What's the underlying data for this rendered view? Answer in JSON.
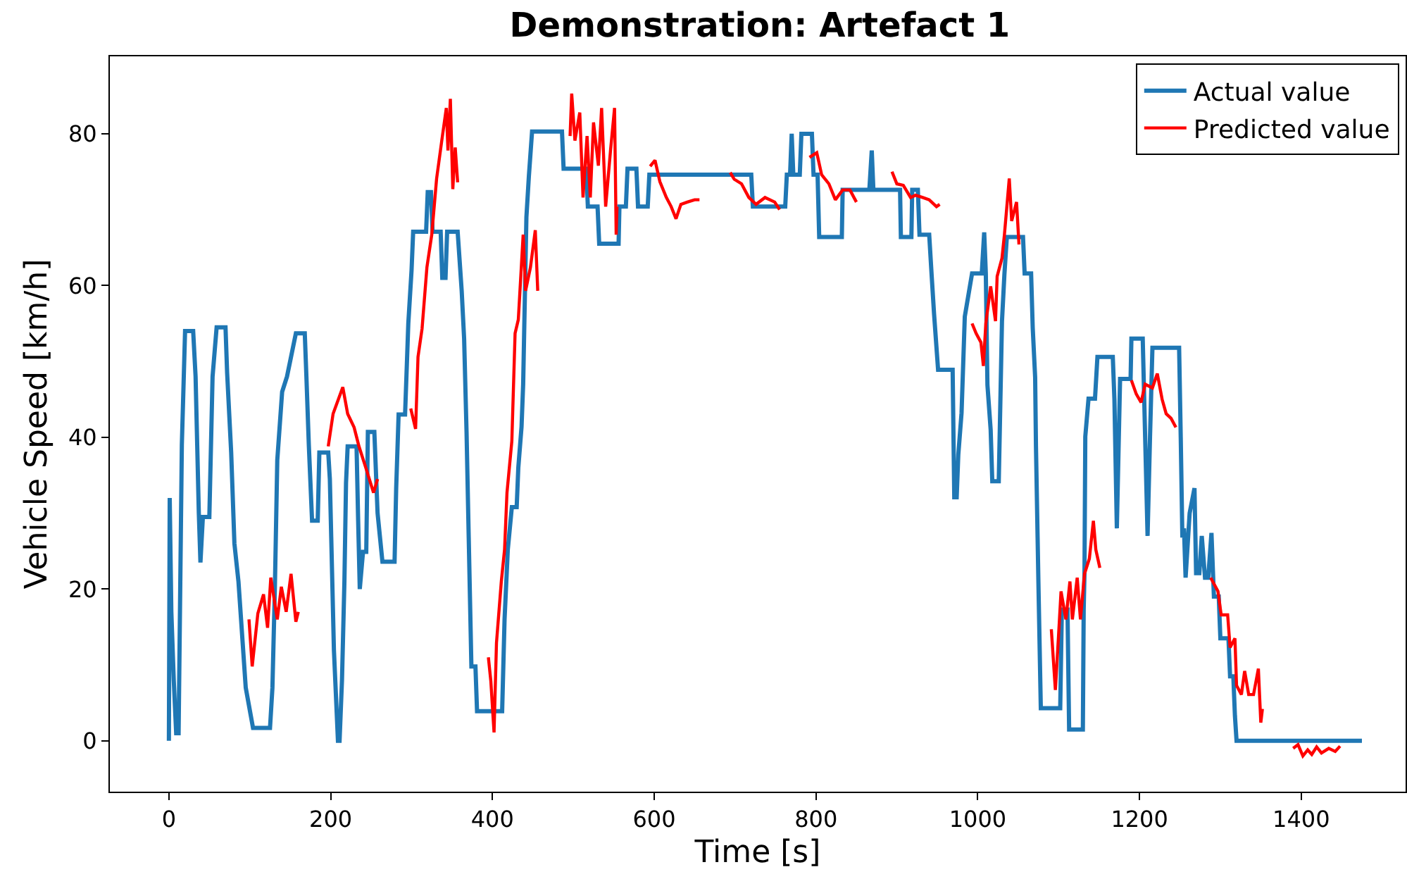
{
  "chart_data": {
    "type": "line",
    "title": "Demonstration: Artefact 1",
    "xlabel": "Time [s]",
    "ylabel": "Vehicle Speed [km/h]",
    "xlim": [
      -73,
      1529
    ],
    "ylim": [
      -6.7,
      90.2
    ],
    "xticks": [
      0,
      200,
      400,
      600,
      800,
      1000,
      1200,
      1400
    ],
    "yticks": [
      0,
      20,
      40,
      60,
      80
    ],
    "grid": false,
    "legend": "top right",
    "line_style": "solid",
    "marker": "none",
    "series": [
      {
        "name": "Actual value",
        "color": "#1f77b4",
        "x": [
          0,
          1,
          3,
          6,
          9,
          12,
          14,
          16,
          20,
          30,
          33,
          37,
          39,
          42,
          50,
          54,
          59,
          70,
          72,
          77,
          81,
          86,
          95,
          104,
          125,
          128,
          131,
          134,
          140,
          146,
          157,
          168,
          170,
          173,
          177,
          184,
          186,
          197,
          199,
          204,
          209,
          211,
          214,
          217,
          219,
          221,
          232,
          234,
          236,
          240,
          244,
          246,
          254,
          258,
          264,
          279,
          281,
          284,
          292,
          296,
          300,
          302,
          318,
          320,
          324,
          326,
          336,
          338,
          342,
          344,
          357,
          362,
          365,
          368,
          371,
          374,
          379,
          381,
          412,
          415,
          419,
          424,
          430,
          432,
          436,
          438,
          442,
          445,
          449,
          486,
          488,
          516,
          518,
          530,
          532,
          556,
          557,
          565,
          567,
          578,
          580,
          592,
          594,
          720,
          722,
          762,
          764,
          768,
          770,
          772,
          780,
          782,
          795,
          797,
          802,
          804,
          832,
          833,
          866,
          869,
          871,
          904,
          905,
          918,
          919,
          926,
          928,
          940,
          943,
          946,
          951,
          969,
          971,
          974,
          976,
          980,
          984,
          993,
          1005,
          1008,
          1010,
          1012,
          1016,
          1018,
          1026,
          1030,
          1033,
          1036,
          1056,
          1058,
          1066,
          1068,
          1071,
          1072,
          1075,
          1078,
          1102,
          1104,
          1111,
          1113,
          1130,
          1131,
          1132,
          1133,
          1137,
          1145,
          1148,
          1167,
          1169,
          1172,
          1176,
          1189,
          1190,
          1204,
          1207,
          1210,
          1213,
          1216,
          1249,
          1251,
          1253,
          1255,
          1257,
          1262,
          1268,
          1270,
          1274,
          1277,
          1281,
          1285,
          1289,
          1292,
          1298,
          1300,
          1310,
          1312,
          1316,
          1318,
          1320,
          1475
        ],
        "values": [
          0,
          32,
          17,
          8,
          1,
          1,
          20,
          39,
          54,
          54,
          48,
          30,
          23.5,
          29.5,
          29.5,
          48,
          54.5,
          54.5,
          48.5,
          38,
          26,
          21,
          7,
          1.7,
          1.7,
          7,
          20,
          37,
          46,
          48,
          53.7,
          53.7,
          48,
          39,
          29,
          29,
          38,
          38,
          34.5,
          12,
          0,
          0,
          8,
          21,
          34,
          38.8,
          38.8,
          29,
          20,
          24.9,
          24.9,
          40.7,
          40.7,
          30,
          23.6,
          23.6,
          33.3,
          43,
          43,
          55,
          62,
          67.1,
          67.1,
          72.3,
          72.3,
          67.1,
          67.1,
          61,
          61,
          67.1,
          67.1,
          59.3,
          53,
          40.7,
          25.2,
          9.8,
          9.8,
          3.9,
          3.9,
          16,
          25.2,
          30.8,
          30.8,
          36,
          41.4,
          47,
          69,
          74.3,
          80.3,
          80.3,
          75.4,
          75.4,
          70.4,
          70.4,
          65.5,
          65.5,
          70.4,
          70.4,
          75.4,
          75.4,
          70.4,
          70.4,
          74.6,
          74.6,
          70.4,
          70.4,
          74.6,
          74.6,
          80,
          74.6,
          74.6,
          80,
          80,
          74.6,
          74.6,
          66.4,
          66.4,
          72.6,
          72.6,
          77.8,
          72.6,
          72.6,
          66.4,
          66.4,
          72.6,
          72.6,
          66.7,
          66.7,
          61.4,
          56.3,
          48.9,
          48.9,
          32.1,
          32.1,
          37.7,
          43.2,
          55.9,
          61.6,
          61.6,
          67,
          61.6,
          46.9,
          41,
          34.2,
          34.2,
          55.3,
          61.5,
          66.4,
          66.4,
          61.6,
          61.6,
          54.4,
          47.9,
          38.9,
          21,
          4.3,
          4.3,
          17.3,
          17.3,
          1.5,
          1.5,
          17.3,
          22.1,
          40.1,
          45.1,
          45.1,
          50.6,
          50.6,
          45,
          28,
          47.7,
          47.7,
          53,
          53,
          40,
          27,
          40,
          51.8,
          51.8,
          40,
          26.8,
          28,
          21.5,
          30,
          33.3,
          22.1,
          22.1,
          27,
          21.5,
          21.5,
          27.4,
          19,
          19,
          13.5,
          13.5,
          8.5,
          8.5,
          3.3,
          0,
          0
        ]
      },
      {
        "name": "Predicted value",
        "color": "#ff0000",
        "x": [
          99,
          103,
          110,
          117,
          122,
          126,
          134,
          139,
          145,
          151,
          157,
          160,
          178,
          197,
          203,
          215,
          221,
          229,
          235,
          244,
          253,
          258,
          278,
          299,
          305,
          308,
          313,
          319,
          325,
          331,
          337,
          343,
          345,
          348,
          351,
          354,
          357,
          376,
          395,
          398,
          402,
          405,
          411,
          415,
          418,
          424,
          428,
          432,
          438,
          441,
          447,
          453,
          456,
          476,
          496,
          498,
          502,
          508,
          512,
          517,
          521,
          525,
          531,
          535,
          540,
          546,
          551,
          553,
          554,
          575,
          595,
          601,
          607,
          615,
          621,
          627,
          633,
          641,
          650,
          656,
          675,
          694,
          699,
          708,
          717,
          726,
          737,
          749,
          755,
          773,
          792,
          801,
          807,
          816,
          824,
          833,
          842,
          850,
          872,
          894,
          900,
          908,
          917,
          923,
          932,
          940,
          949,
          953,
          973,
          993,
          998,
          1004,
          1007,
          1010,
          1016,
          1022,
          1024,
          1030,
          1033,
          1039,
          1042,
          1048,
          1051,
          1071,
          1091,
          1096,
          1100,
          1103,
          1109,
          1114,
          1117,
          1123,
          1127,
          1132,
          1138,
          1143,
          1146,
          1151,
          1170,
          1190,
          1196,
          1202,
          1207,
          1216,
          1222,
          1228,
          1233,
          1239,
          1245,
          1267,
          1288,
          1297,
          1301,
          1309,
          1312,
          1318,
          1320,
          1326,
          1330,
          1335,
          1341,
          1347,
          1350,
          1352,
          1371,
          1390,
          1396,
          1402,
          1408,
          1413,
          1419,
          1425,
          1434,
          1442,
          1448
        ],
        "values": [
          16,
          9.8,
          16.8,
          19.3,
          14.9,
          21.5,
          16,
          20.3,
          17,
          22,
          15.7,
          17,
          null,
          38.8,
          43.1,
          46.6,
          43.1,
          41.3,
          38.8,
          35.8,
          32.7,
          34.5,
          null,
          43.8,
          41.1,
          50.6,
          54.3,
          62.4,
          66.7,
          74.1,
          78.8,
          83.4,
          77.8,
          84.6,
          72.7,
          78.2,
          73.6,
          null,
          11,
          7.9,
          1.1,
          12.9,
          21,
          25.2,
          32.7,
          39.5,
          53.7,
          55.5,
          66.7,
          59.3,
          62.4,
          67.3,
          59.3,
          null,
          79.7,
          85.3,
          79.1,
          82.8,
          71.6,
          79.7,
          71.6,
          81.5,
          75.8,
          83.4,
          70.4,
          77.8,
          83.4,
          66.7,
          70.4,
          null,
          75.7,
          76.5,
          73.7,
          71.6,
          70.4,
          68.8,
          70.7,
          71,
          71.3,
          71.3,
          null,
          74.9,
          74,
          73.4,
          71.6,
          70.7,
          71.6,
          71,
          70,
          null,
          76.9,
          77.5,
          74.6,
          73.4,
          71.3,
          72.6,
          72.6,
          71,
          null,
          75,
          73.4,
          73.2,
          71.6,
          71.9,
          71.6,
          71.3,
          70.4,
          70.7,
          null,
          55,
          53.7,
          52.5,
          49.4,
          55,
          59.9,
          55.3,
          61.2,
          63.6,
          66.7,
          74.1,
          68.5,
          71,
          65.4,
          null,
          14.7,
          6.7,
          14,
          19.7,
          16,
          21,
          16,
          21.5,
          16,
          22,
          24,
          29,
          25.2,
          22.8,
          null,
          47.5,
          45.7,
          44.6,
          47,
          46.5,
          48.4,
          45,
          43.1,
          42.5,
          41.3,
          null,
          21.5,
          19.7,
          16.6,
          16.6,
          12.3,
          13.5,
          7.3,
          6.1,
          9.2,
          6.1,
          6.1,
          9.5,
          2.4,
          4.2,
          null,
          -1,
          -0.5,
          -2,
          -1.2,
          -1.8,
          -0.8,
          -1.6,
          -1,
          -1.4,
          -0.7
        ]
      }
    ]
  }
}
